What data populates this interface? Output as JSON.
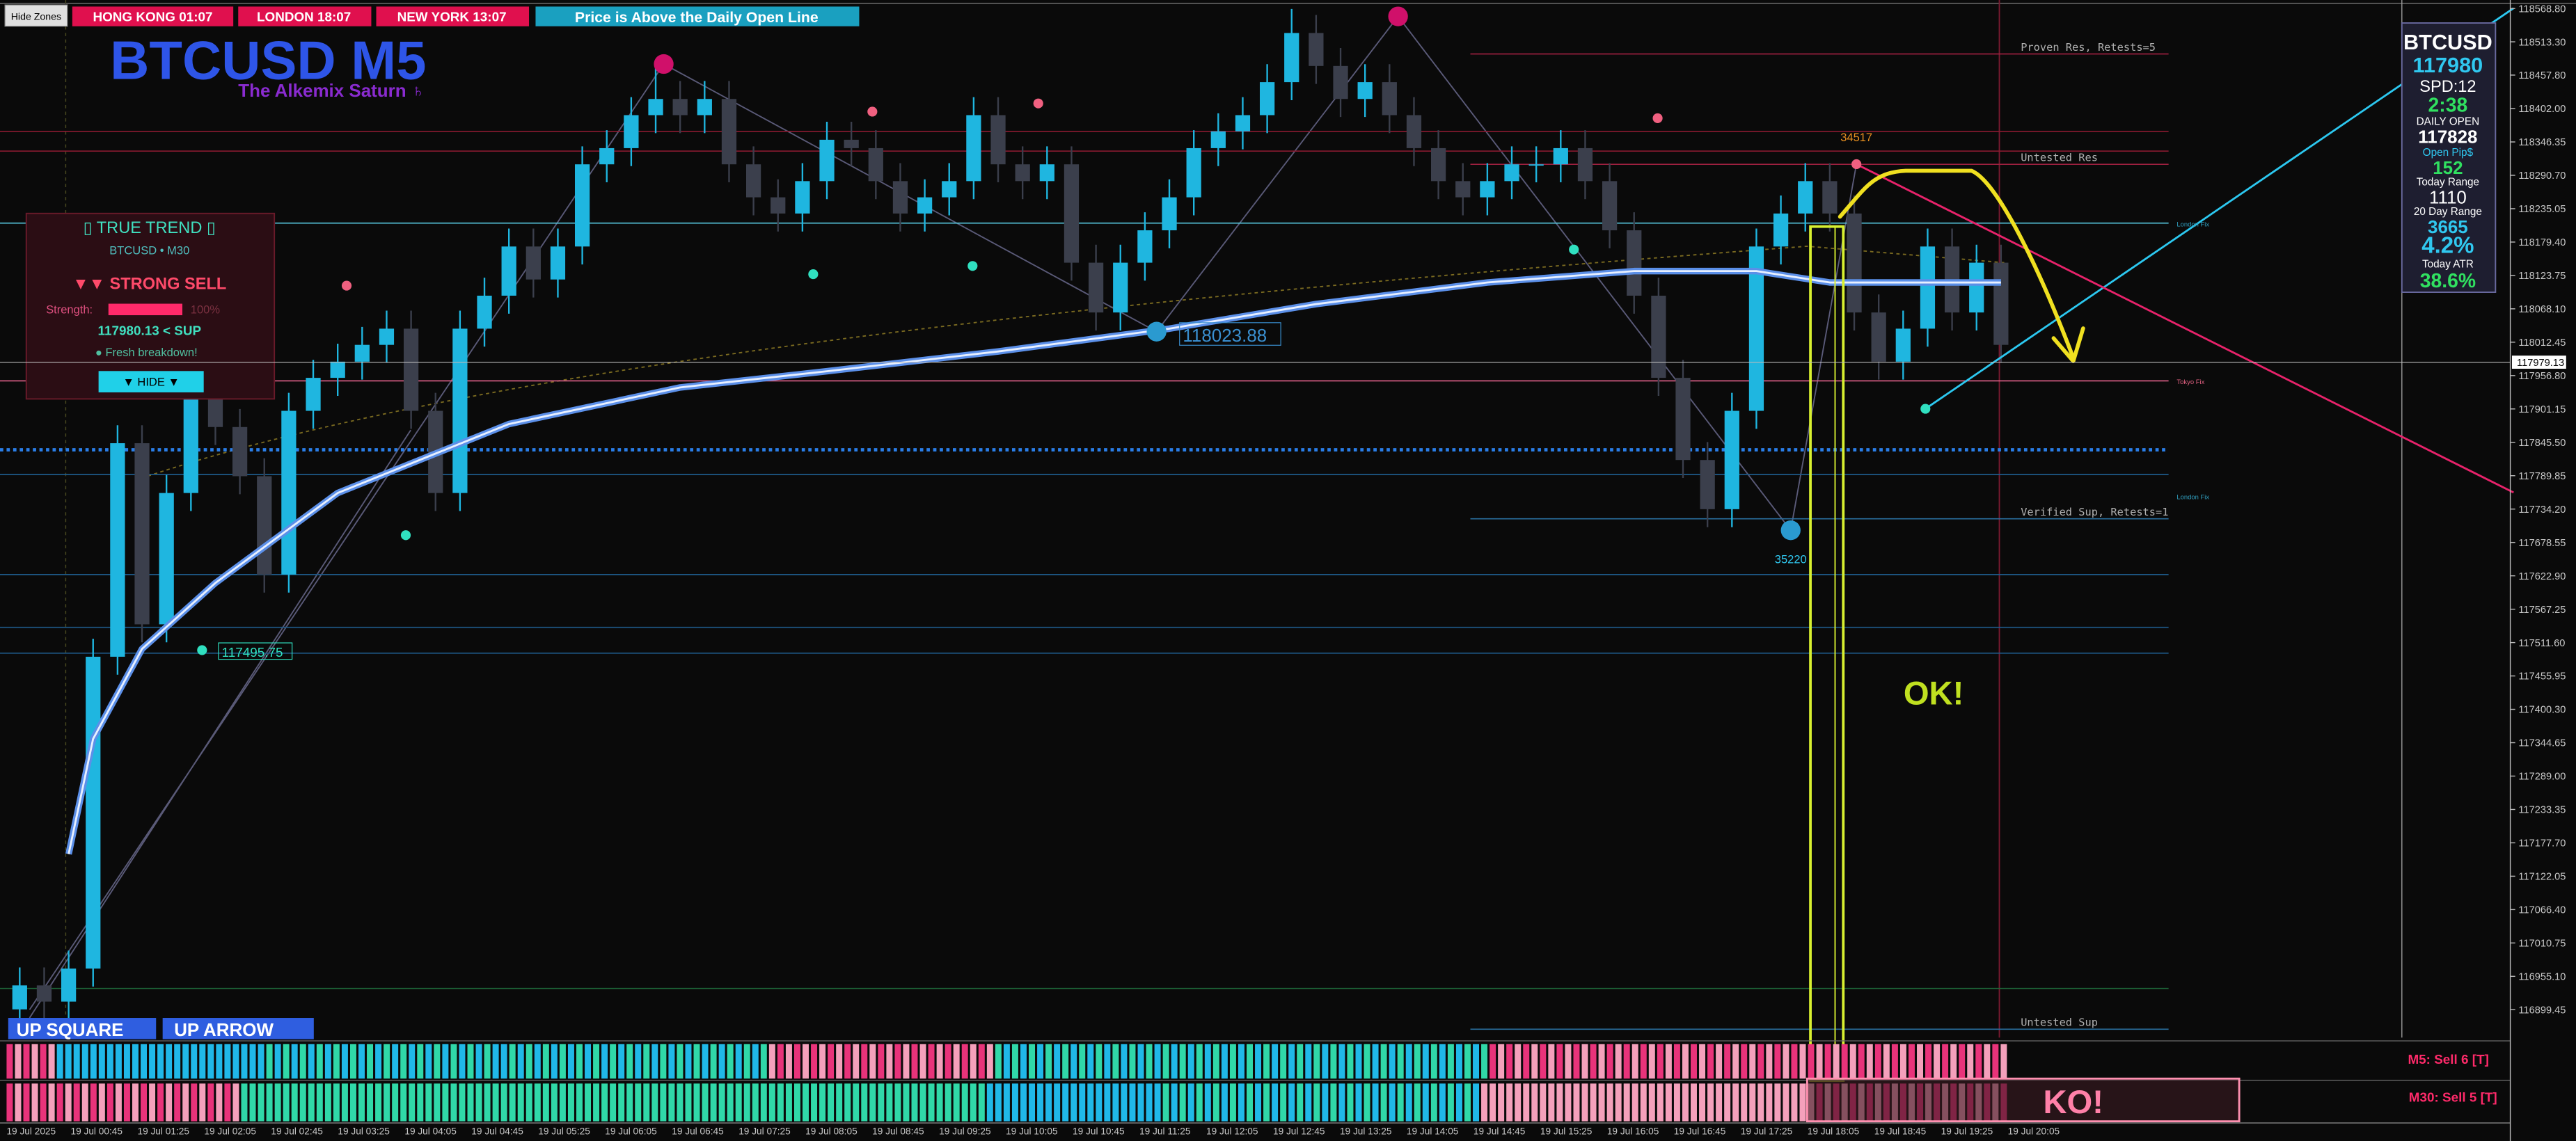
{
  "toolbar": {
    "hide_zones": "Hide Zones"
  },
  "header": {
    "sessions": [
      "HONG KONG 01:07",
      "LONDON 18:07",
      "NEW YORK 13:07"
    ],
    "status": "Price is Above the Daily Open Line"
  },
  "chart_data": {
    "type": "candlestick",
    "title": "BTCUSD M5",
    "subtitle": "The Alkemix Saturn ♄",
    "up_color": "#1fb6e0",
    "down_color": "#3b3f4c",
    "open": [
      116900,
      116940,
      116913,
      116968,
      117488,
      117844,
      117542,
      117761,
      117926,
      117871,
      117789,
      117625,
      117898,
      117953,
      117980,
      118008,
      118035,
      117898,
      117761,
      118035,
      118090,
      118172,
      118117,
      118172,
      118309,
      118336,
      118391,
      118418,
      118391,
      118418,
      118309,
      118254,
      118227,
      118281,
      118350,
      118336,
      118281,
      118227,
      118254,
      118281,
      118391,
      118309,
      118281,
      118309,
      118145,
      118062,
      118145,
      118199,
      118254,
      118336,
      118364,
      118391,
      118446,
      118528,
      118473,
      118418,
      118446,
      118391,
      118336,
      118281,
      118254,
      118281,
      118309,
      118309,
      118336,
      118281,
      118199,
      118090,
      117953,
      117816,
      117734,
      117898,
      118172,
      118227,
      118281,
      118227,
      118062,
      117980,
      118035,
      118172,
      118062,
      118145
    ],
    "high": [
      116970,
      116970,
      116998,
      117518,
      117874,
      117874,
      117791,
      117956,
      117956,
      117901,
      117819,
      117928,
      117983,
      118010,
      118038,
      118065,
      118065,
      117928,
      118065,
      118120,
      118202,
      118202,
      118202,
      118339,
      118366,
      118421,
      118475,
      118448,
      118448,
      118448,
      118339,
      118284,
      118311,
      118380,
      118380,
      118366,
      118311,
      118284,
      118311,
      118421,
      118421,
      118339,
      118339,
      118339,
      118175,
      118175,
      118229,
      118284,
      118366,
      118394,
      118421,
      118476,
      118568,
      118558,
      118503,
      118476,
      118476,
      118421,
      118366,
      118311,
      118311,
      118339,
      118339,
      118366,
      118366,
      118311,
      118229,
      118120,
      117983,
      117846,
      117928,
      118202,
      118257,
      118311,
      118311,
      118257,
      118092,
      118065,
      118202,
      118202,
      118175,
      118175
    ],
    "low": [
      116860,
      116883,
      116883,
      116938,
      117458,
      117512,
      117512,
      117731,
      117841,
      117759,
      117595,
      117595,
      117868,
      117923,
      117950,
      117978,
      117868,
      117731,
      117731,
      118005,
      118060,
      118087,
      118087,
      118142,
      118279,
      118306,
      118361,
      118361,
      118361,
      118279,
      118224,
      118197,
      118197,
      118251,
      118306,
      118251,
      118197,
      118197,
      118224,
      118251,
      118279,
      118251,
      118251,
      118115,
      118032,
      118032,
      118115,
      118169,
      118224,
      118306,
      118334,
      118361,
      118416,
      118443,
      118388,
      118388,
      118361,
      118306,
      118251,
      118224,
      118224,
      118251,
      118279,
      118279,
      118251,
      118169,
      118060,
      117923,
      117786,
      117704,
      117704,
      117868,
      118142,
      118197,
      118197,
      118032,
      117950,
      117950,
      118005,
      118032,
      118032,
      117978
    ],
    "close": [
      116940,
      116913,
      116968,
      117488,
      117844,
      117542,
      117761,
      117926,
      117871,
      117789,
      117625,
      117898,
      117953,
      117980,
      118008,
      118035,
      117898,
      117761,
      118035,
      118090,
      118172,
      118117,
      118172,
      118309,
      118336,
      118391,
      118418,
      118391,
      118418,
      118309,
      118254,
      118227,
      118281,
      118350,
      118336,
      118281,
      118227,
      118254,
      118281,
      118391,
      118309,
      118281,
      118309,
      118145,
      118062,
      118145,
      118199,
      118254,
      118336,
      118364,
      118391,
      118446,
      118528,
      118473,
      118418,
      118446,
      118391,
      118336,
      118281,
      118254,
      118281,
      118309,
      118309,
      118336,
      118281,
      118199,
      118090,
      117953,
      117816,
      117734,
      117898,
      118172,
      118227,
      118281,
      118227,
      118062,
      117980,
      118035,
      118172,
      118062,
      118145,
      118008
    ],
    "ma": {
      "color": "#5b8fe8",
      "x": [
        2,
        3,
        5,
        8,
        13,
        20,
        27,
        33,
        40,
        47,
        53,
        60,
        66,
        71,
        74,
        81
      ],
      "values": [
        117159,
        117351,
        117501,
        117611,
        117761,
        117876,
        117937,
        117964,
        117997,
        118035,
        118076,
        118112,
        118131,
        118131,
        118112,
        118112
      ]
    },
    "x_labels": [
      "19 Jul 2025",
      "19 Jul 00:45",
      "19 Jul 01:25",
      "19 Jul 02:05",
      "19 Jul 02:45",
      "19 Jul 03:25",
      "19 Jul 04:05",
      "19 Jul 04:45",
      "19 Jul 05:25",
      "19 Jul 06:05",
      "19 Jul 06:45",
      "19 Jul 07:25",
      "19 Jul 08:05",
      "19 Jul 08:45",
      "19 Jul 09:25",
      "19 Jul 10:05",
      "19 Jul 10:45",
      "19 Jul 11:25",
      "19 Jul 12:05",
      "19 Jul 12:45",
      "19 Jul 13:25",
      "19 Jul 14:05",
      "19 Jul 14:45",
      "19 Jul 15:25",
      "19 Jul 16:05",
      "19 Jul 16:45",
      "19 Jul 17:25",
      "19 Jul 18:05",
      "19 Jul 18:45",
      "19 Jul 19:25",
      "19 Jul 20:05"
    ],
    "ylim": [
      116853,
      118583
    ],
    "yticks": [
      {
        "value": 118568.8,
        "label": "118568.80"
      },
      {
        "value": 118513.3,
        "label": "118513.30"
      },
      {
        "value": 118457.8,
        "label": "118457.80"
      },
      {
        "value": 118402,
        "label": "118402.00"
      },
      {
        "value": 118346.35,
        "label": "118346.35"
      },
      {
        "value": 118290.7,
        "label": "118290.70"
      },
      {
        "value": 118235.05,
        "label": "118235.05"
      },
      {
        "value": 118179.4,
        "label": "118179.40"
      },
      {
        "value": 118123.75,
        "label": "118123.75"
      },
      {
        "value": 118068.1,
        "label": "118068.10"
      },
      {
        "value": 118012.45,
        "label": "118012.45"
      },
      {
        "value": 117956.8,
        "label": "117956.80"
      },
      {
        "value": 117901.15,
        "label": "117901.15"
      },
      {
        "value": 117845.5,
        "label": "117845.50"
      },
      {
        "value": 117789.85,
        "label": "117789.85"
      },
      {
        "value": 117734.2,
        "label": "117734.20"
      },
      {
        "value": 117678.55,
        "label": "117678.55"
      },
      {
        "value": 117622.9,
        "label": "117622.90"
      },
      {
        "value": 117567.25,
        "label": "117567.25"
      },
      {
        "value": 117511.6,
        "label": "117511.60"
      },
      {
        "value": 117455.95,
        "label": "117455.95"
      },
      {
        "value": 117400.3,
        "label": "117400.30"
      },
      {
        "value": 117344.65,
        "label": "117344.65"
      },
      {
        "value": 117289,
        "label": "117289.00"
      },
      {
        "value": 117233.35,
        "label": "117233.35"
      },
      {
        "value": 117177.7,
        "label": "117177.70"
      },
      {
        "value": 117122.05,
        "label": "117122.05"
      },
      {
        "value": 117066.4,
        "label": "117066.40"
      },
      {
        "value": 117010.75,
        "label": "117010.75"
      },
      {
        "value": 116955.1,
        "label": "116955.10"
      },
      {
        "value": 116899.45,
        "label": "116899.45"
      }
    ],
    "current_price": {
      "value": 117979.13,
      "label": "117979.13"
    },
    "levels": [
      {
        "value": 118364,
        "color": "#8a1a30",
        "style": "solid"
      },
      {
        "value": 118331,
        "color": "#8a1a30",
        "style": "solid"
      },
      {
        "value": 118211,
        "color": "#56c8e0",
        "style": "solid"
      },
      {
        "value": 117948,
        "color": "#e0608a",
        "style": "solid"
      },
      {
        "value": 117833,
        "color": "#2a7ee8",
        "style": "dotted"
      },
      {
        "value": 117792,
        "color": "#1e5a8a",
        "style": "solid"
      },
      {
        "value": 117625,
        "color": "#1e5a8a",
        "style": "solid"
      },
      {
        "value": 117537,
        "color": "#1e5a8a",
        "style": "solid"
      },
      {
        "value": 117494,
        "color": "#1e5a8a",
        "style": "solid"
      },
      {
        "value": 116935,
        "color": "#1e6a3a",
        "style": "solid"
      }
    ],
    "zones": [
      {
        "label": "Proven Res, Retests=5",
        "value": 118493,
        "color": "#a02040"
      },
      {
        "label": "Untested Res",
        "value": 118309,
        "color": "#a02040"
      },
      {
        "label": "Verified Sup, Retests=1",
        "value": 117718,
        "color": "#2a70a0"
      },
      {
        "label": "Untested Sup",
        "value": 116867,
        "color": "#2a70a0"
      }
    ],
    "fix_labels": [
      "London Fix",
      "Tokyo Fix",
      "London Fix"
    ],
    "price_labels": [
      {
        "value": 117495.75,
        "label": "117495.75"
      },
      {
        "value": 118023.88,
        "label": "118023.88"
      }
    ],
    "pivot_labels": [
      35220,
      34517
    ]
  },
  "trend_panel": {
    "title": "▯ TRUE TREND ▯",
    "symbol": "BTCUSD • M30",
    "signal": "▼▼ STRONG SELL",
    "strength_label": "Strength:",
    "strength": {
      "value": 100,
      "label": "100%"
    },
    "price_note": "117980.13 < SUP",
    "status": "● Fresh breakdown!",
    "button": "▼ HIDE ▼"
  },
  "info_panel": {
    "symbol": "BTCUSD",
    "price": 117980,
    "spread": "SPD:12",
    "timer": "2:38",
    "daily_open_label": "DAILY OPEN",
    "daily_open": 117828,
    "open_pips_label": "Open Pip$",
    "open_pips": 152,
    "today_range_label": "Today Range",
    "today_range": 1110,
    "range20_label": "20 Day Range",
    "range20": 3665,
    "range_pct": {
      "value": 4.2,
      "label": "4.2%"
    },
    "atr_label": "Today ATR",
    "atr_pct": {
      "value": 38.6,
      "label": "38.6%"
    }
  },
  "signals": [
    "UP SQUARE",
    "UP ARROW"
  ],
  "indicator": {
    "m5": "M5: Sell 6 [T]",
    "m30": "M30: Sell 5 [T]"
  },
  "annotations": {
    "ok": "OK!",
    "ko": "KO!"
  }
}
